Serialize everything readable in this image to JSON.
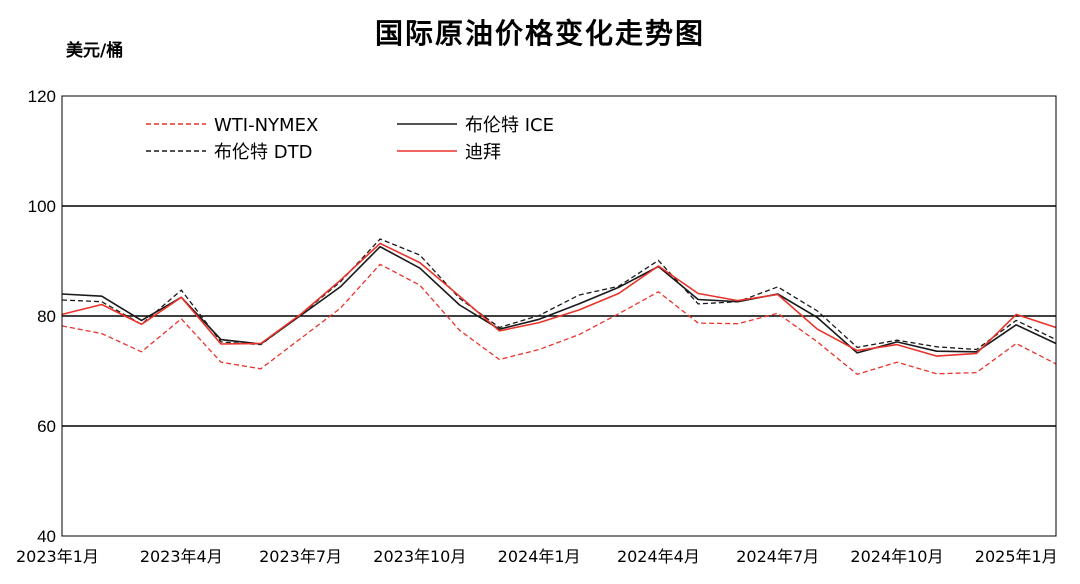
{
  "chart_data": {
    "type": "line",
    "title": "国际原油价格变化走势图",
    "ylabel": "美元/桶",
    "ylim": [
      40,
      120
    ],
    "yticks": [
      40,
      60,
      80,
      100,
      120
    ],
    "grid": true,
    "legend_position": "top-left",
    "x": [
      "2023-01",
      "2023-02",
      "2023-03",
      "2023-04",
      "2023-05",
      "2023-06",
      "2023-07",
      "2023-08",
      "2023-09",
      "2023-10",
      "2023-11",
      "2023-12",
      "2024-01",
      "2024-02",
      "2024-03",
      "2024-04",
      "2024-05",
      "2024-06",
      "2024-07",
      "2024-08",
      "2024-09",
      "2024-10",
      "2024-11",
      "2024-12",
      "2025-01",
      "2025-02"
    ],
    "xtick_labels": [
      "2023年1月",
      "",
      "",
      "2023年4月",
      "",
      "",
      "2023年7月",
      "",
      "",
      "2023年10月",
      "",
      "",
      "2024年1月",
      "",
      "",
      "2024年4月",
      "",
      "",
      "2024年7月",
      "",
      "",
      "2024年10月",
      "",
      "",
      "2025年1月",
      ""
    ],
    "series": [
      {
        "name": "WTI-NYMEX",
        "color": "#e8332a",
        "dash": "dashed",
        "values": [
          78.2,
          76.8,
          73.5,
          79.5,
          71.6,
          70.4,
          75.9,
          81.4,
          89.4,
          85.6,
          77.4,
          72.1,
          73.9,
          76.6,
          80.4,
          84.4,
          78.7,
          78.6,
          80.5,
          75.3,
          69.4,
          71.6,
          69.5,
          69.7,
          75.0,
          71.3
        ]
      },
      {
        "name": "布伦特 ICE",
        "color": "#1a1a1a",
        "dash": "solid",
        "values": [
          84.0,
          83.6,
          79.2,
          83.4,
          75.7,
          74.9,
          80.1,
          85.3,
          92.6,
          88.7,
          82.0,
          77.6,
          79.4,
          82.2,
          85.2,
          89.0,
          83.0,
          82.6,
          84.0,
          79.7,
          73.3,
          75.3,
          73.6,
          73.5,
          78.4,
          75.0
        ]
      },
      {
        "name": "布伦特 DTD",
        "color": "#1a1a1a",
        "dash": "dashed",
        "values": [
          82.9,
          82.6,
          78.5,
          84.7,
          75.3,
          74.8,
          80.2,
          86.2,
          94.0,
          91.1,
          83.2,
          77.9,
          80.1,
          83.8,
          85.4,
          90.1,
          82.2,
          82.6,
          85.3,
          80.9,
          74.3,
          75.6,
          74.4,
          73.9,
          79.2,
          75.7
        ]
      },
      {
        "name": "迪拜",
        "color": "#e8332a",
        "dash": "solid",
        "values": [
          80.3,
          82.1,
          78.5,
          83.4,
          74.9,
          75.0,
          80.3,
          86.5,
          93.2,
          89.7,
          83.6,
          77.3,
          78.8,
          81.1,
          84.1,
          89.1,
          84.1,
          82.8,
          83.9,
          77.6,
          73.7,
          74.8,
          72.7,
          73.2,
          80.3,
          77.9
        ]
      }
    ]
  }
}
